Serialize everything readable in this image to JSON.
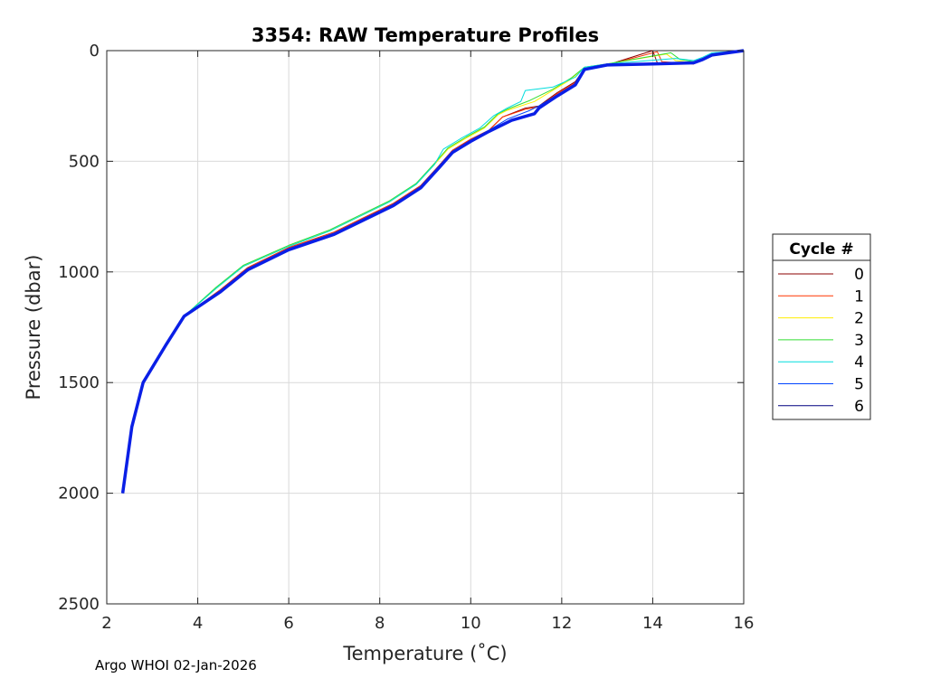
{
  "chart_data": {
    "type": "line",
    "title": "3354: RAW Temperature Profiles",
    "xlabel": "Temperature (˚C)",
    "ylabel": "Pressure (dbar)",
    "xlim": [
      2,
      16
    ],
    "ylim": [
      0,
      2500
    ],
    "y_reversed": true,
    "grid": true,
    "x_ticks": [
      "2",
      "4",
      "6",
      "8",
      "10",
      "12",
      "14",
      "16"
    ],
    "y_ticks": [
      "0",
      "500",
      "1000",
      "1500",
      "2000",
      "2500"
    ],
    "legend": {
      "title": "Cycle #",
      "placement": "outside-right"
    },
    "series": [
      {
        "name": "0",
        "color": "#8b0000",
        "x": [
          16.0,
          15.3,
          15.1,
          14.9,
          14.1,
          14.0,
          13.0,
          12.5,
          12.3,
          11.9,
          11.5,
          11.2,
          10.7,
          10.4,
          10.0,
          9.6,
          9.3,
          8.9,
          8.3,
          7.6,
          7.0,
          6.0,
          5.1,
          4.5,
          3.7,
          3.3,
          2.8,
          2.55,
          2.35
        ],
        "y": [
          0,
          20,
          40,
          60,
          55,
          0,
          65,
          80,
          140,
          190,
          250,
          260,
          300,
          360,
          400,
          450,
          520,
          610,
          690,
          760,
          820,
          890,
          980,
          1080,
          1200,
          1330,
          1500,
          1700,
          2000
        ]
      },
      {
        "name": "1",
        "color": "#ff3300",
        "x": [
          16.0,
          15.3,
          15.1,
          14.9,
          14.2,
          14.1,
          13.0,
          12.5,
          12.3,
          11.9,
          11.5,
          11.2,
          10.7,
          10.4,
          10.0,
          9.6,
          9.3,
          8.9,
          8.3,
          7.6,
          7.0,
          6.0,
          5.1,
          4.5,
          3.7,
          3.3,
          2.8,
          2.55,
          2.35
        ],
        "y": [
          0,
          20,
          40,
          60,
          50,
          5,
          65,
          80,
          145,
          195,
          255,
          265,
          300,
          360,
          400,
          450,
          520,
          610,
          690,
          760,
          820,
          890,
          980,
          1080,
          1200,
          1330,
          1500,
          1700,
          2000
        ]
      },
      {
        "name": "2",
        "color": "#ffee00",
        "x": [
          16.0,
          15.3,
          15.1,
          14.9,
          14.5,
          14.3,
          13.0,
          12.5,
          12.2,
          11.8,
          11.4,
          10.8,
          10.6,
          10.3,
          9.9,
          9.5,
          9.2,
          8.8,
          8.2,
          7.5,
          6.9,
          6.0,
          5.0,
          4.4,
          3.7,
          3.3,
          2.8,
          2.55,
          2.35
        ],
        "y": [
          0,
          20,
          40,
          55,
          45,
          15,
          60,
          75,
          130,
          180,
          230,
          270,
          290,
          350,
          395,
          445,
          515,
          605,
          685,
          755,
          815,
          885,
          975,
          1075,
          1200,
          1330,
          1500,
          1700,
          2000
        ]
      },
      {
        "name": "3",
        "color": "#33dd33",
        "x": [
          16.0,
          15.3,
          15.1,
          14.9,
          14.6,
          14.4,
          13.0,
          12.5,
          12.2,
          11.8,
          11.3,
          10.8,
          10.6,
          10.3,
          9.9,
          9.5,
          9.2,
          8.8,
          8.2,
          7.5,
          6.9,
          6.0,
          5.0,
          4.4,
          3.7,
          3.3,
          2.8,
          2.55,
          2.35
        ],
        "y": [
          0,
          15,
          35,
          50,
          40,
          10,
          60,
          75,
          125,
          175,
          225,
          265,
          285,
          345,
          390,
          440,
          510,
          600,
          680,
          750,
          810,
          880,
          970,
          1070,
          1200,
          1330,
          1500,
          1700,
          2000
        ]
      },
      {
        "name": "4",
        "color": "#00dddd",
        "x": [
          16.0,
          15.3,
          15.1,
          14.9,
          14.5,
          13.0,
          12.5,
          12.3,
          11.8,
          11.2,
          11.1,
          10.8,
          10.5,
          10.2,
          9.8,
          9.4,
          9.2,
          8.8,
          8.2,
          7.5,
          6.9,
          6.0,
          5.0,
          4.4,
          3.7,
          3.3,
          2.8,
          2.55,
          2.35
        ],
        "y": [
          0,
          10,
          30,
          45,
          35,
          60,
          75,
          120,
          165,
          180,
          230,
          260,
          295,
          350,
          395,
          445,
          515,
          605,
          685,
          755,
          815,
          885,
          975,
          1075,
          1200,
          1330,
          1500,
          1700,
          2000
        ]
      },
      {
        "name": "5",
        "color": "#0044ff",
        "x": [
          16.0,
          15.3,
          15.1,
          14.9,
          14.0,
          13.0,
          12.5,
          12.3,
          11.9,
          11.5,
          11.3,
          10.8,
          10.4,
          10.0,
          9.6,
          9.3,
          8.9,
          8.3,
          7.6,
          7.0,
          6.0,
          5.1,
          4.5,
          3.7,
          3.3,
          2.8,
          2.55,
          2.35
        ],
        "y": [
          0,
          20,
          40,
          55,
          60,
          65,
          85,
          150,
          200,
          250,
          270,
          310,
          360,
          405,
          455,
          525,
          615,
          695,
          765,
          825,
          895,
          985,
          1085,
          1200,
          1330,
          1500,
          1700,
          2000
        ]
      },
      {
        "name": "6",
        "color": "#000080",
        "x": [
          16.0,
          15.3,
          15.1,
          14.9,
          14.0,
          13.0,
          12.5,
          12.3,
          11.9,
          11.5,
          11.4,
          10.9,
          10.4,
          10.0,
          9.6,
          9.3,
          8.9,
          8.3,
          7.6,
          7.0,
          6.0,
          5.1,
          4.5,
          3.7,
          3.3,
          2.8,
          2.55,
          2.35
        ],
        "y": [
          0,
          20,
          40,
          55,
          60,
          65,
          85,
          155,
          205,
          260,
          285,
          315,
          365,
          410,
          460,
          530,
          620,
          700,
          770,
          830,
          900,
          990,
          1090,
          1200,
          1330,
          1500,
          1700,
          2000
        ]
      }
    ]
  },
  "footer": {
    "text": "Argo WHOI 02-Jan-2026"
  }
}
